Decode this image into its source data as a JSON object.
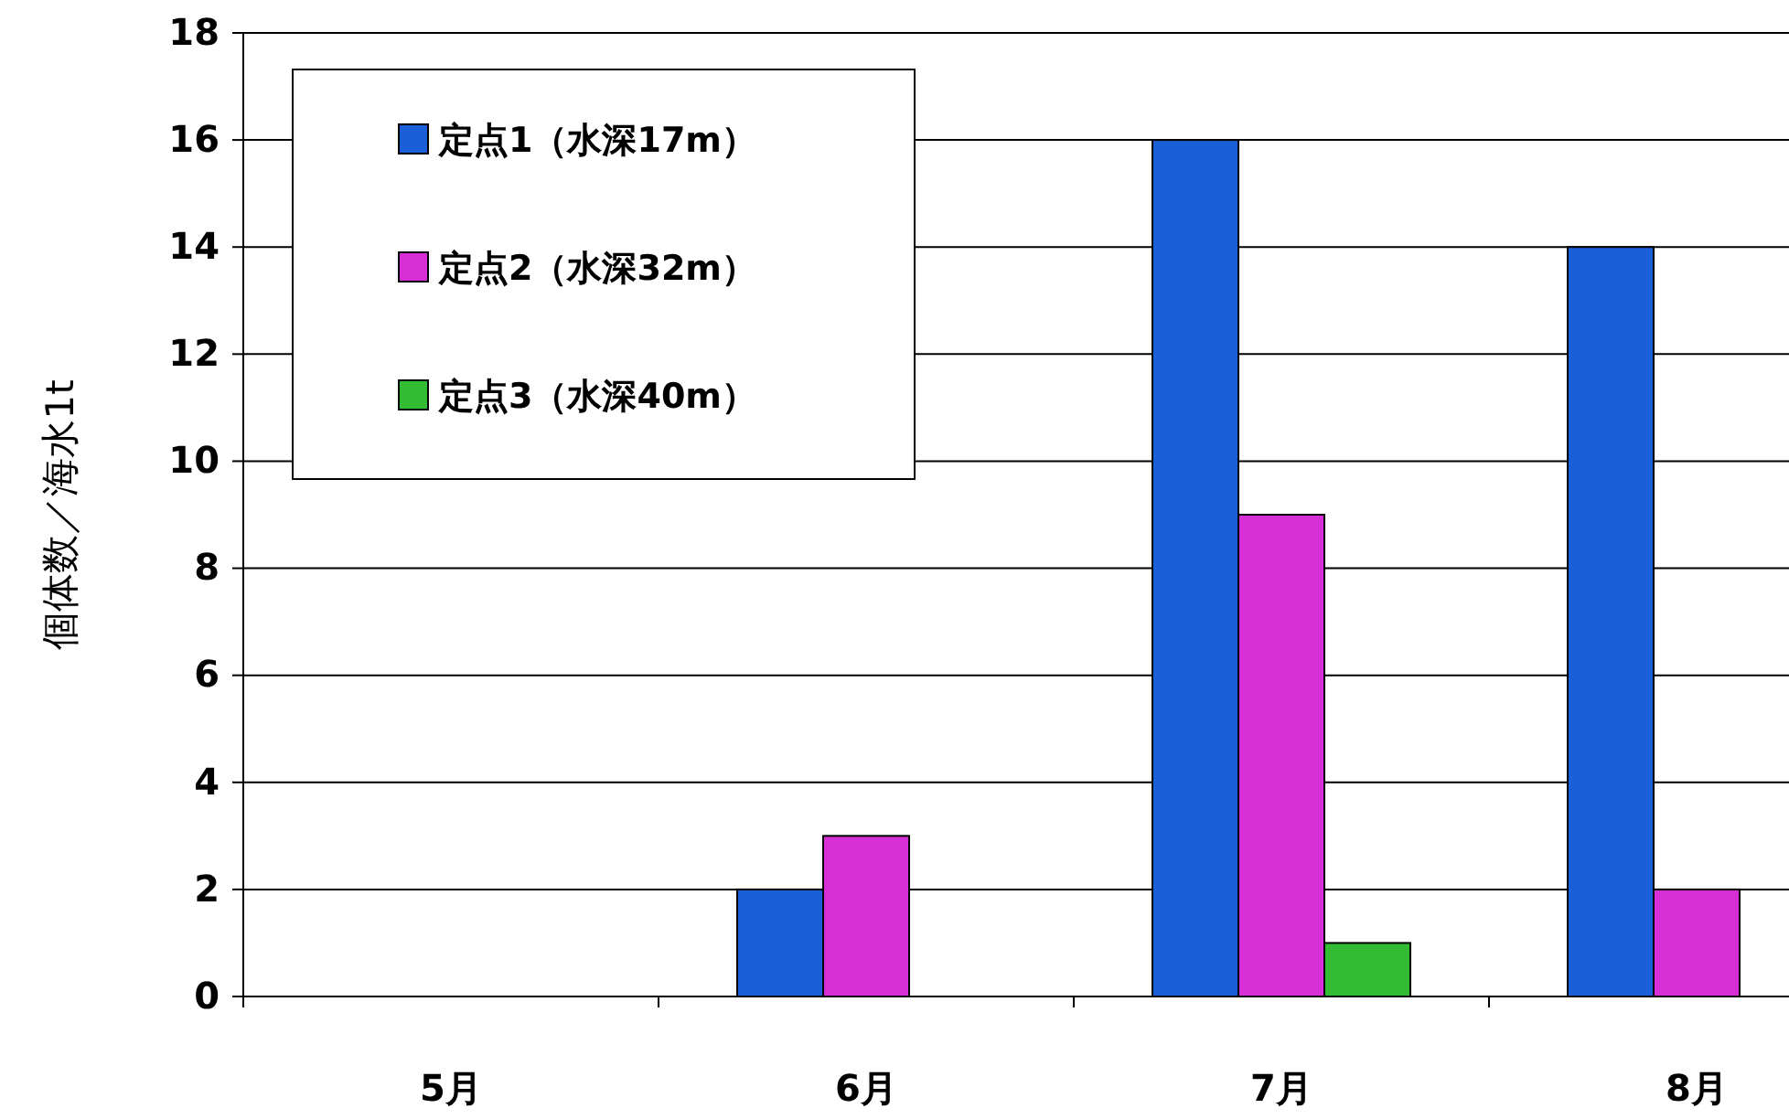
{
  "chart_data": {
    "type": "bar",
    "ylabel": "個体数／海水1t",
    "categories": [
      "5月",
      "6月",
      "7月",
      "8月"
    ],
    "series": [
      {
        "name": "定点1（水深17m）",
        "color": "#1a5fd8",
        "values": [
          0,
          2,
          16,
          14
        ]
      },
      {
        "name": "定点2（水深32m）",
        "color": "#d62fd6",
        "values": [
          0,
          3,
          9,
          2
        ]
      },
      {
        "name": "定点3（水深40m）",
        "color": "#33bb33",
        "values": [
          0,
          0,
          1,
          0
        ]
      }
    ],
    "ylim": [
      0,
      18
    ],
    "yticks": [
      0,
      2,
      4,
      6,
      8,
      10,
      12,
      14,
      16,
      18
    ],
    "grid": "y",
    "legend": "top left"
  }
}
